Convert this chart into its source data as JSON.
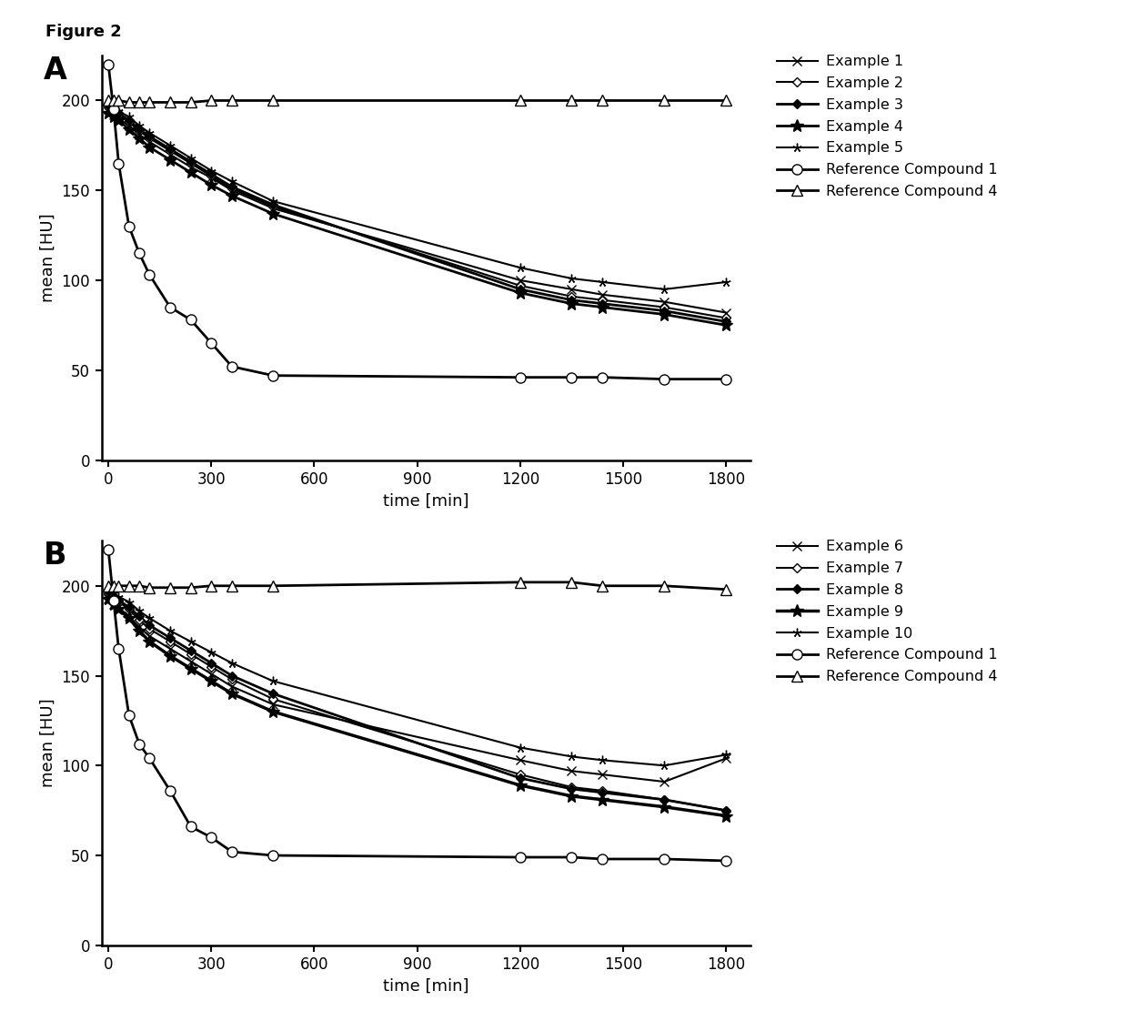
{
  "figure_label": "Figure 2",
  "panel_A_label": "A",
  "panel_B_label": "B",
  "xlabel": "time [min]",
  "ylabel": "mean [HU]",
  "ylim": [
    0,
    225
  ],
  "xlim": [
    -20,
    1870
  ],
  "yticks": [
    0,
    50,
    100,
    150,
    200
  ],
  "xticks": [
    0,
    300,
    600,
    900,
    1200,
    1500,
    1800
  ],
  "panel_A": {
    "series": [
      {
        "label": "Example 1",
        "x": [
          0,
          15,
          30,
          60,
          90,
          120,
          180,
          240,
          300,
          360,
          480,
          1200,
          1350,
          1440,
          1620,
          1800
        ],
        "y": [
          195,
          192,
          190,
          186,
          181,
          177,
          170,
          163,
          157,
          150,
          140,
          100,
          95,
          92,
          88,
          82
        ],
        "marker": "x",
        "linewidth": 1.5,
        "markersize": 7,
        "color": "#000000",
        "linestyle": "-",
        "markerfacecolor": "#000000"
      },
      {
        "label": "Example 2",
        "x": [
          0,
          15,
          30,
          60,
          90,
          120,
          180,
          240,
          300,
          360,
          480,
          1200,
          1350,
          1440,
          1620,
          1800
        ],
        "y": [
          196,
          194,
          192,
          188,
          183,
          179,
          172,
          165,
          158,
          151,
          141,
          97,
          91,
          89,
          85,
          79
        ],
        "marker": "D",
        "linewidth": 1.5,
        "markersize": 5,
        "color": "#000000",
        "linestyle": "-",
        "markerfacecolor": "white"
      },
      {
        "label": "Example 3",
        "x": [
          0,
          15,
          30,
          60,
          90,
          120,
          180,
          240,
          300,
          360,
          480,
          1200,
          1350,
          1440,
          1620,
          1800
        ],
        "y": [
          197,
          195,
          193,
          189,
          184,
          180,
          173,
          166,
          159,
          152,
          142,
          95,
          89,
          87,
          83,
          77
        ],
        "marker": "D",
        "linewidth": 2,
        "markersize": 5,
        "color": "#000000",
        "linestyle": "-",
        "markerfacecolor": "#000000"
      },
      {
        "label": "Example 4",
        "x": [
          0,
          15,
          30,
          60,
          90,
          120,
          180,
          240,
          300,
          360,
          480,
          1200,
          1350,
          1440,
          1620,
          1800
        ],
        "y": [
          193,
          191,
          189,
          184,
          179,
          174,
          167,
          160,
          153,
          147,
          137,
          93,
          87,
          85,
          81,
          75
        ],
        "marker": "*",
        "linewidth": 2,
        "markersize": 10,
        "color": "#000000",
        "linestyle": "-",
        "markerfacecolor": "#000000"
      },
      {
        "label": "Example 5",
        "x": [
          0,
          15,
          30,
          60,
          90,
          120,
          180,
          240,
          300,
          360,
          480,
          1200,
          1350,
          1440,
          1620,
          1800
        ],
        "y": [
          198,
          196,
          194,
          191,
          186,
          182,
          175,
          168,
          161,
          155,
          144,
          107,
          101,
          99,
          95,
          99
        ],
        "marker": "*",
        "linewidth": 1.5,
        "markersize": 7,
        "color": "#000000",
        "linestyle": "-",
        "markerfacecolor": "#000000",
        "marker_extra": "thin_star"
      },
      {
        "label": "Reference Compound 1",
        "x": [
          0,
          15,
          30,
          60,
          90,
          120,
          180,
          240,
          300,
          360,
          480,
          1200,
          1350,
          1440,
          1620,
          1800
        ],
        "y": [
          220,
          195,
          165,
          130,
          115,
          103,
          85,
          78,
          65,
          52,
          47,
          46,
          46,
          46,
          45,
          45
        ],
        "marker": "o",
        "linewidth": 2,
        "markersize": 8,
        "color": "#000000",
        "linestyle": "-",
        "markerfacecolor": "white"
      },
      {
        "label": "Reference Compound 4",
        "x": [
          0,
          15,
          30,
          60,
          90,
          120,
          180,
          240,
          300,
          360,
          480,
          1200,
          1350,
          1440,
          1620,
          1800
        ],
        "y": [
          200,
          200,
          200,
          199,
          199,
          199,
          199,
          199,
          200,
          200,
          200,
          200,
          200,
          200,
          200,
          200
        ],
        "marker": "^",
        "linewidth": 2,
        "markersize": 8,
        "color": "#000000",
        "linestyle": "-",
        "markerfacecolor": "white"
      }
    ]
  },
  "panel_B": {
    "series": [
      {
        "label": "Example 6",
        "x": [
          0,
          15,
          30,
          60,
          90,
          120,
          180,
          240,
          300,
          360,
          480,
          1200,
          1350,
          1440,
          1620,
          1800
        ],
        "y": [
          193,
          190,
          188,
          183,
          177,
          172,
          165,
          158,
          151,
          144,
          134,
          103,
          97,
          95,
          91,
          104
        ],
        "marker": "x",
        "linewidth": 1.5,
        "markersize": 7,
        "color": "#000000",
        "linestyle": "-",
        "markerfacecolor": "#000000"
      },
      {
        "label": "Example 7",
        "x": [
          0,
          15,
          30,
          60,
          90,
          120,
          180,
          240,
          300,
          360,
          480,
          1200,
          1350,
          1440,
          1620,
          1800
        ],
        "y": [
          196,
          193,
          191,
          187,
          181,
          176,
          169,
          162,
          155,
          148,
          137,
          95,
          88,
          86,
          81,
          75
        ],
        "marker": "D",
        "linewidth": 1.5,
        "markersize": 5,
        "color": "#000000",
        "linestyle": "-",
        "markerfacecolor": "white"
      },
      {
        "label": "Example 8",
        "x": [
          0,
          15,
          30,
          60,
          90,
          120,
          180,
          240,
          300,
          360,
          480,
          1200,
          1350,
          1440,
          1620,
          1800
        ],
        "y": [
          197,
          194,
          192,
          188,
          183,
          178,
          171,
          164,
          157,
          150,
          140,
          93,
          87,
          85,
          81,
          75
        ],
        "marker": "D",
        "linewidth": 2,
        "markersize": 5,
        "color": "#000000",
        "linestyle": "-",
        "markerfacecolor": "#000000"
      },
      {
        "label": "Example 9",
        "x": [
          0,
          15,
          30,
          60,
          90,
          120,
          180,
          240,
          300,
          360,
          480,
          1200,
          1350,
          1440,
          1620,
          1800
        ],
        "y": [
          193,
          190,
          187,
          182,
          175,
          169,
          161,
          154,
          147,
          140,
          130,
          89,
          83,
          81,
          77,
          72
        ],
        "marker": "*",
        "linewidth": 2.5,
        "markersize": 10,
        "color": "#000000",
        "linestyle": "-",
        "markerfacecolor": "#000000"
      },
      {
        "label": "Example 10",
        "x": [
          0,
          15,
          30,
          60,
          90,
          120,
          180,
          240,
          300,
          360,
          480,
          1200,
          1350,
          1440,
          1620,
          1800
        ],
        "y": [
          198,
          196,
          194,
          191,
          186,
          182,
          175,
          169,
          163,
          157,
          147,
          110,
          105,
          103,
          100,
          106
        ],
        "marker": "*",
        "linewidth": 1.5,
        "markersize": 7,
        "color": "#000000",
        "linestyle": "-",
        "markerfacecolor": "#000000",
        "marker_extra": "thin_star"
      },
      {
        "label": "Reference Compound 1",
        "x": [
          0,
          15,
          30,
          60,
          90,
          120,
          180,
          240,
          300,
          360,
          480,
          1200,
          1350,
          1440,
          1620,
          1800
        ],
        "y": [
          220,
          192,
          165,
          128,
          112,
          104,
          86,
          66,
          60,
          52,
          50,
          49,
          49,
          48,
          48,
          47
        ],
        "marker": "o",
        "linewidth": 2,
        "markersize": 8,
        "color": "#000000",
        "linestyle": "-",
        "markerfacecolor": "white"
      },
      {
        "label": "Reference Compound 4",
        "x": [
          0,
          15,
          30,
          60,
          90,
          120,
          180,
          240,
          300,
          360,
          480,
          1200,
          1350,
          1440,
          1620,
          1800
        ],
        "y": [
          200,
          200,
          200,
          200,
          200,
          199,
          199,
          199,
          200,
          200,
          200,
          202,
          202,
          200,
          200,
          198
        ],
        "marker": "^",
        "linewidth": 2,
        "markersize": 8,
        "color": "#000000",
        "linestyle": "-",
        "markerfacecolor": "white"
      }
    ]
  }
}
